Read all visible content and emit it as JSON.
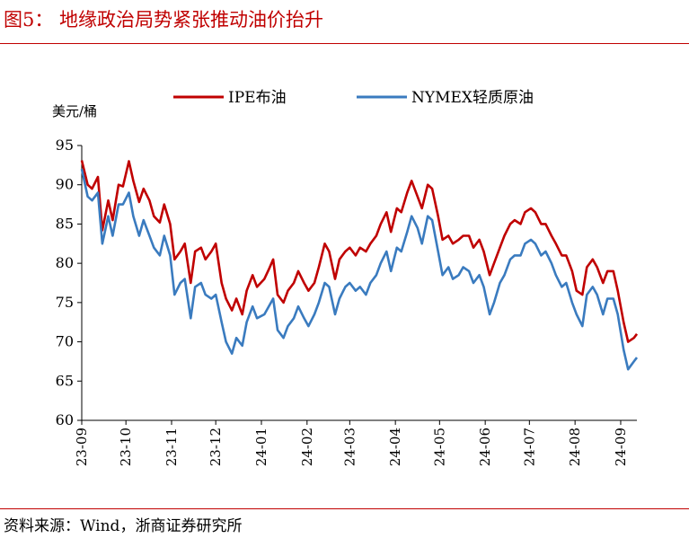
{
  "figure": {
    "title": "图5：  地缘政治局势紧张推动油价抬升",
    "source": "资料来源：Wind，浙商证券研究所"
  },
  "chart_data": {
    "type": "line",
    "ylabel": "美元/桶",
    "ylim": [
      60,
      95
    ],
    "yticks": [
      60,
      65,
      70,
      75,
      80,
      85,
      90,
      95
    ],
    "x_start": "2023-09-01",
    "x_end": "2024-09-12",
    "xticks": [
      {
        "date": "2023-09-01",
        "label": "23-09"
      },
      {
        "date": "2023-10-01",
        "label": "23-10"
      },
      {
        "date": "2023-11-01",
        "label": "23-11"
      },
      {
        "date": "2023-12-01",
        "label": "23-12"
      },
      {
        "date": "2024-01-01",
        "label": "24-01"
      },
      {
        "date": "2024-02-01",
        "label": "24-02"
      },
      {
        "date": "2024-03-01",
        "label": "24-03"
      },
      {
        "date": "2024-04-01",
        "label": "24-04"
      },
      {
        "date": "2024-05-01",
        "label": "24-05"
      },
      {
        "date": "2024-06-01",
        "label": "24-06"
      },
      {
        "date": "2024-07-01",
        "label": "24-07"
      },
      {
        "date": "2024-08-01",
        "label": "24-08"
      },
      {
        "date": "2024-09-01",
        "label": "24-09"
      }
    ],
    "legend_position": "top",
    "grid": false,
    "series": [
      {
        "name": "IPE布油",
        "color": "#c00000",
        "points": [
          [
            "2023-09-01",
            93.1
          ],
          [
            "2023-09-05",
            90.0
          ],
          [
            "2023-09-08",
            89.5
          ],
          [
            "2023-09-12",
            91.0
          ],
          [
            "2023-09-15",
            84.2
          ],
          [
            "2023-09-19",
            88.0
          ],
          [
            "2023-09-22",
            85.5
          ],
          [
            "2023-09-26",
            90.0
          ],
          [
            "2023-09-29",
            89.8
          ],
          [
            "2023-10-03",
            93.0
          ],
          [
            "2023-10-06",
            90.5
          ],
          [
            "2023-10-10",
            87.8
          ],
          [
            "2023-10-13",
            89.5
          ],
          [
            "2023-10-17",
            88.0
          ],
          [
            "2023-10-20",
            86.0
          ],
          [
            "2023-10-24",
            85.2
          ],
          [
            "2023-10-27",
            87.5
          ],
          [
            "2023-10-31",
            85.0
          ],
          [
            "2023-11-03",
            80.5
          ],
          [
            "2023-11-07",
            81.5
          ],
          [
            "2023-11-10",
            82.5
          ],
          [
            "2023-11-14",
            77.5
          ],
          [
            "2023-11-17",
            81.5
          ],
          [
            "2023-11-21",
            82.0
          ],
          [
            "2023-11-24",
            80.5
          ],
          [
            "2023-11-28",
            81.5
          ],
          [
            "2023-12-01",
            82.5
          ],
          [
            "2023-12-05",
            77.5
          ],
          [
            "2023-12-08",
            75.5
          ],
          [
            "2023-12-12",
            74.0
          ],
          [
            "2023-12-15",
            75.5
          ],
          [
            "2023-12-19",
            73.5
          ],
          [
            "2023-12-22",
            76.5
          ],
          [
            "2023-12-26",
            78.5
          ],
          [
            "2023-12-29",
            77.0
          ],
          [
            "2024-01-03",
            78.0
          ],
          [
            "2024-01-06",
            79.2
          ],
          [
            "2024-01-09",
            80.5
          ],
          [
            "2024-01-12",
            76.0
          ],
          [
            "2024-01-16",
            75.0
          ],
          [
            "2024-01-19",
            76.5
          ],
          [
            "2024-01-23",
            77.5
          ],
          [
            "2024-01-26",
            79.0
          ],
          [
            "2024-01-30",
            77.5
          ],
          [
            "2024-02-02",
            76.5
          ],
          [
            "2024-02-06",
            77.5
          ],
          [
            "2024-02-09",
            79.5
          ],
          [
            "2024-02-13",
            82.5
          ],
          [
            "2024-02-16",
            81.5
          ],
          [
            "2024-02-20",
            78.0
          ],
          [
            "2024-02-23",
            80.5
          ],
          [
            "2024-02-27",
            81.5
          ],
          [
            "2024-03-01",
            82.0
          ],
          [
            "2024-03-05",
            81.0
          ],
          [
            "2024-03-08",
            82.0
          ],
          [
            "2024-03-12",
            81.5
          ],
          [
            "2024-03-15",
            82.5
          ],
          [
            "2024-03-19",
            83.5
          ],
          [
            "2024-03-22",
            85.0
          ],
          [
            "2024-03-26",
            86.5
          ],
          [
            "2024-03-29",
            84.0
          ],
          [
            "2024-04-02",
            87.0
          ],
          [
            "2024-04-05",
            86.5
          ],
          [
            "2024-04-09",
            89.0
          ],
          [
            "2024-04-12",
            90.5
          ],
          [
            "2024-04-16",
            88.5
          ],
          [
            "2024-04-19",
            87.0
          ],
          [
            "2024-04-23",
            90.0
          ],
          [
            "2024-04-26",
            89.5
          ],
          [
            "2024-04-30",
            86.0
          ],
          [
            "2024-05-03",
            83.0
          ],
          [
            "2024-05-07",
            83.5
          ],
          [
            "2024-05-10",
            82.5
          ],
          [
            "2024-05-14",
            83.0
          ],
          [
            "2024-05-17",
            83.5
          ],
          [
            "2024-05-21",
            83.5
          ],
          [
            "2024-05-24",
            82.0
          ],
          [
            "2024-05-28",
            83.0
          ],
          [
            "2024-05-31",
            81.5
          ],
          [
            "2024-06-04",
            78.5
          ],
          [
            "2024-06-07",
            80.0
          ],
          [
            "2024-06-11",
            82.0
          ],
          [
            "2024-06-14",
            83.5
          ],
          [
            "2024-06-18",
            85.0
          ],
          [
            "2024-06-21",
            85.5
          ],
          [
            "2024-06-25",
            85.0
          ],
          [
            "2024-06-28",
            86.5
          ],
          [
            "2024-07-02",
            87.0
          ],
          [
            "2024-07-05",
            86.5
          ],
          [
            "2024-07-09",
            85.0
          ],
          [
            "2024-07-12",
            85.0
          ],
          [
            "2024-07-16",
            83.5
          ],
          [
            "2024-07-19",
            82.5
          ],
          [
            "2024-07-23",
            81.0
          ],
          [
            "2024-07-26",
            81.0
          ],
          [
            "2024-07-30",
            79.0
          ],
          [
            "2024-08-02",
            76.5
          ],
          [
            "2024-08-06",
            76.0
          ],
          [
            "2024-08-09",
            79.5
          ],
          [
            "2024-08-13",
            80.5
          ],
          [
            "2024-08-16",
            79.5
          ],
          [
            "2024-08-20",
            77.5
          ],
          [
            "2024-08-23",
            79.0
          ],
          [
            "2024-08-27",
            79.0
          ],
          [
            "2024-08-30",
            76.5
          ],
          [
            "2024-09-03",
            72.5
          ],
          [
            "2024-09-06",
            70.0
          ],
          [
            "2024-09-10",
            70.5
          ],
          [
            "2024-09-12",
            71.0
          ]
        ]
      },
      {
        "name": "NYMEX轻质原油",
        "color": "#3a7bbf",
        "points": [
          [
            "2023-09-01",
            92.0
          ],
          [
            "2023-09-05",
            88.5
          ],
          [
            "2023-09-08",
            88.0
          ],
          [
            "2023-09-12",
            89.0
          ],
          [
            "2023-09-15",
            82.5
          ],
          [
            "2023-09-19",
            86.0
          ],
          [
            "2023-09-22",
            83.5
          ],
          [
            "2023-09-26",
            87.5
          ],
          [
            "2023-09-29",
            87.5
          ],
          [
            "2023-10-03",
            89.0
          ],
          [
            "2023-10-06",
            86.0
          ],
          [
            "2023-10-10",
            83.5
          ],
          [
            "2023-10-13",
            85.5
          ],
          [
            "2023-10-17",
            83.5
          ],
          [
            "2023-10-20",
            82.0
          ],
          [
            "2023-10-24",
            81.0
          ],
          [
            "2023-10-27",
            83.5
          ],
          [
            "2023-10-31",
            81.0
          ],
          [
            "2023-11-03",
            76.0
          ],
          [
            "2023-11-07",
            77.5
          ],
          [
            "2023-11-10",
            78.0
          ],
          [
            "2023-11-14",
            73.0
          ],
          [
            "2023-11-17",
            77.0
          ],
          [
            "2023-11-21",
            77.5
          ],
          [
            "2023-11-24",
            76.0
          ],
          [
            "2023-11-28",
            75.5
          ],
          [
            "2023-12-01",
            76.0
          ],
          [
            "2023-12-05",
            72.5
          ],
          [
            "2023-12-08",
            70.0
          ],
          [
            "2023-12-12",
            68.5
          ],
          [
            "2023-12-15",
            70.5
          ],
          [
            "2023-12-19",
            69.5
          ],
          [
            "2023-12-22",
            72.5
          ],
          [
            "2023-12-26",
            74.5
          ],
          [
            "2023-12-29",
            73.0
          ],
          [
            "2024-01-03",
            73.5
          ],
          [
            "2024-01-06",
            74.5
          ],
          [
            "2024-01-09",
            75.5
          ],
          [
            "2024-01-12",
            71.5
          ],
          [
            "2024-01-16",
            70.5
          ],
          [
            "2024-01-19",
            72.0
          ],
          [
            "2024-01-23",
            73.0
          ],
          [
            "2024-01-26",
            74.5
          ],
          [
            "2024-01-30",
            73.0
          ],
          [
            "2024-02-02",
            72.0
          ],
          [
            "2024-02-06",
            73.5
          ],
          [
            "2024-02-09",
            75.0
          ],
          [
            "2024-02-13",
            77.5
          ],
          [
            "2024-02-16",
            77.0
          ],
          [
            "2024-02-20",
            73.5
          ],
          [
            "2024-02-23",
            75.5
          ],
          [
            "2024-02-27",
            77.0
          ],
          [
            "2024-03-01",
            77.5
          ],
          [
            "2024-03-05",
            76.5
          ],
          [
            "2024-03-08",
            77.0
          ],
          [
            "2024-03-12",
            76.0
          ],
          [
            "2024-03-15",
            77.5
          ],
          [
            "2024-03-19",
            78.5
          ],
          [
            "2024-03-22",
            80.0
          ],
          [
            "2024-03-26",
            81.5
          ],
          [
            "2024-03-29",
            79.0
          ],
          [
            "2024-04-02",
            82.0
          ],
          [
            "2024-04-05",
            81.5
          ],
          [
            "2024-04-09",
            84.0
          ],
          [
            "2024-04-12",
            86.0
          ],
          [
            "2024-04-16",
            84.5
          ],
          [
            "2024-04-19",
            82.5
          ],
          [
            "2024-04-23",
            86.0
          ],
          [
            "2024-04-26",
            85.5
          ],
          [
            "2024-04-30",
            81.5
          ],
          [
            "2024-05-03",
            78.5
          ],
          [
            "2024-05-07",
            79.5
          ],
          [
            "2024-05-10",
            78.0
          ],
          [
            "2024-05-14",
            78.5
          ],
          [
            "2024-05-17",
            79.5
          ],
          [
            "2024-05-21",
            79.0
          ],
          [
            "2024-05-24",
            77.5
          ],
          [
            "2024-05-28",
            78.5
          ],
          [
            "2024-05-31",
            77.0
          ],
          [
            "2024-06-04",
            73.5
          ],
          [
            "2024-06-07",
            75.0
          ],
          [
            "2024-06-11",
            77.5
          ],
          [
            "2024-06-14",
            78.5
          ],
          [
            "2024-06-18",
            80.5
          ],
          [
            "2024-06-21",
            81.0
          ],
          [
            "2024-06-25",
            81.0
          ],
          [
            "2024-06-28",
            82.5
          ],
          [
            "2024-07-02",
            83.0
          ],
          [
            "2024-07-05",
            82.5
          ],
          [
            "2024-07-09",
            81.0
          ],
          [
            "2024-07-12",
            81.5
          ],
          [
            "2024-07-16",
            80.0
          ],
          [
            "2024-07-19",
            78.5
          ],
          [
            "2024-07-23",
            77.0
          ],
          [
            "2024-07-26",
            77.5
          ],
          [
            "2024-07-30",
            75.0
          ],
          [
            "2024-08-02",
            73.5
          ],
          [
            "2024-08-06",
            72.0
          ],
          [
            "2024-08-09",
            76.0
          ],
          [
            "2024-08-13",
            77.0
          ],
          [
            "2024-08-16",
            76.0
          ],
          [
            "2024-08-20",
            73.5
          ],
          [
            "2024-08-23",
            75.5
          ],
          [
            "2024-08-27",
            75.5
          ],
          [
            "2024-08-30",
            73.5
          ],
          [
            "2024-09-03",
            69.0
          ],
          [
            "2024-09-06",
            66.5
          ],
          [
            "2024-09-10",
            67.5
          ],
          [
            "2024-09-12",
            68.0
          ]
        ]
      }
    ]
  }
}
